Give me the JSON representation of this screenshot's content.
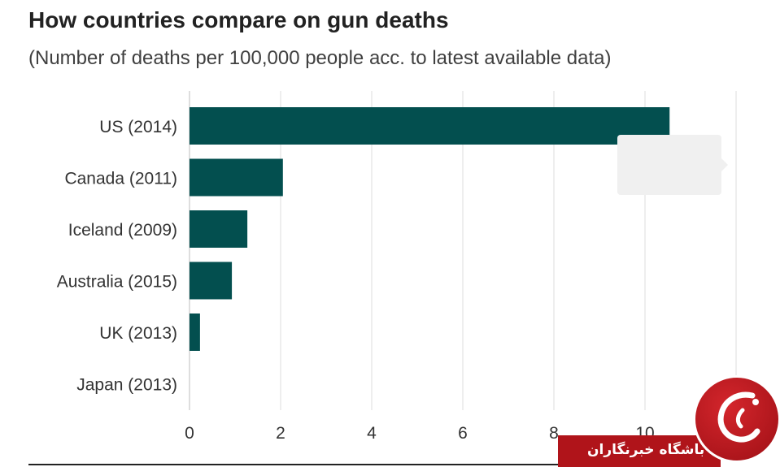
{
  "title": "How countries compare on gun deaths",
  "subtitle": "(Number of deaths per 100,000 people acc. to latest available data)",
  "colors": {
    "bar": "#034f4f",
    "grid": "#dddddd",
    "axis": "#222222",
    "text": "#333333"
  },
  "watermark": {
    "text": "باشگاه خبرنگاران"
  },
  "chart_data": {
    "type": "bar",
    "orientation": "horizontal",
    "categories": [
      "US (2014)",
      "Canada (2011)",
      "Iceland (2009)",
      "Australia (2015)",
      "UK (2013)",
      "Japan (2013)"
    ],
    "values": [
      10.54,
      2.05,
      1.27,
      0.93,
      0.23,
      0.0
    ],
    "xlim": [
      0,
      12
    ],
    "xticks": [
      0,
      2,
      4,
      6,
      8,
      10
    ],
    "grid": true,
    "xlabel": "",
    "ylabel": ""
  }
}
